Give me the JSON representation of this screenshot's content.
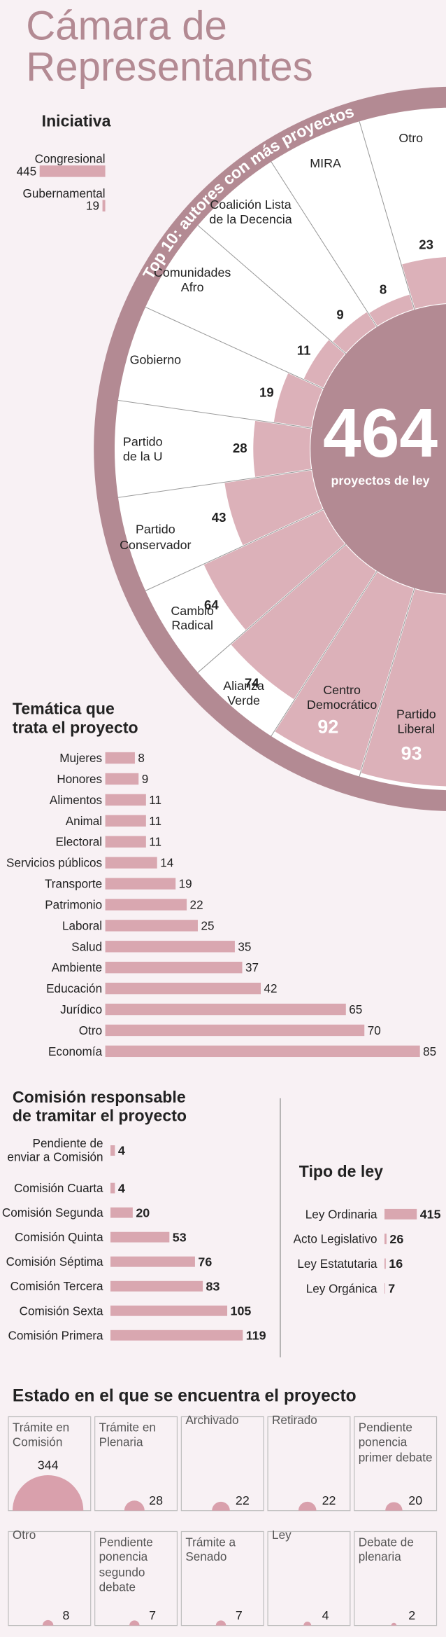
{
  "title": "Cámara de\nRepresentantes",
  "chart_data": [
    {
      "type": "bar",
      "orientation": "horizontal",
      "title": "Iniciativa",
      "categories": [
        "Congresional",
        "Gubernamental"
      ],
      "values": [
        445,
        19
      ],
      "color": "#d9a7b0"
    },
    {
      "type": "polar-bar",
      "title": "Top 10: autores con más proyectos",
      "total": 464,
      "total_label": "proyectos de ley",
      "categories": [
        "Otro",
        "MIRA",
        "Coalición Lista\nde la Decencia",
        "Comunidades\nAfro",
        "Gobierno",
        "Partido\nde la U",
        "Partido\nConservador",
        "Cambio\nRadical",
        "Alianza\nVerde",
        "Centro\nDemocrático",
        "Partido\nLiberal"
      ],
      "values": [
        23,
        8,
        9,
        11,
        19,
        28,
        43,
        64,
        74,
        92,
        93
      ],
      "color": "#dcb1b9",
      "center_color": "#b38a93"
    },
    {
      "type": "bar",
      "orientation": "horizontal",
      "title": "Temática que\ntrata el proyecto",
      "categories": [
        "Mujeres",
        "Honores",
        "Alimentos",
        "Animal",
        "Electoral",
        "Servicios públicos",
        "Transporte",
        "Patrimonio",
        "Laboral",
        "Salud",
        "Ambiente",
        "Educación",
        "Jurídico",
        "Otro",
        "Economía"
      ],
      "values": [
        8,
        9,
        11,
        11,
        11,
        14,
        19,
        22,
        25,
        35,
        37,
        42,
        65,
        70,
        85
      ],
      "color": "#d9a7b0"
    },
    {
      "type": "bar",
      "orientation": "horizontal",
      "title": "Comisión responsable\nde tramitar el proyecto",
      "categories": [
        "Pendiente de\nenviar a Comisión",
        "Comisión Cuarta",
        "Comisión Segunda",
        "Comisión Quinta",
        "Comisión Séptima",
        "Comisión Tercera",
        "Comisión Sexta",
        "Comisión Primera"
      ],
      "values": [
        4,
        4,
        20,
        53,
        76,
        83,
        105,
        119
      ],
      "color": "#d9a7b0"
    },
    {
      "type": "bar",
      "orientation": "horizontal",
      "title": "Tipo de ley",
      "categories": [
        "Ley Ordinaria",
        "Acto Legislativo",
        "Ley Estatutaria",
        "Ley Orgánica"
      ],
      "values": [
        415,
        26,
        16,
        7
      ],
      "color": "#d9a7b0"
    },
    {
      "type": "semicircle-grid",
      "title": "Estado en el que se encuentra el proyecto",
      "categories": [
        "Trámite en\nComisión",
        "Trámite en\nPlenaria",
        "Archivado",
        "Retirado",
        "Pendiente\nponencia\nprimer debate",
        "Otro",
        "Pendiente\nponencia\nsegundo\ndebate",
        "Trámite a\nSenado",
        "Ley",
        "Debate de\nplenaria"
      ],
      "values": [
        344,
        28,
        22,
        22,
        20,
        8,
        7,
        7,
        4,
        2
      ],
      "color": "#d9a0ac"
    }
  ]
}
